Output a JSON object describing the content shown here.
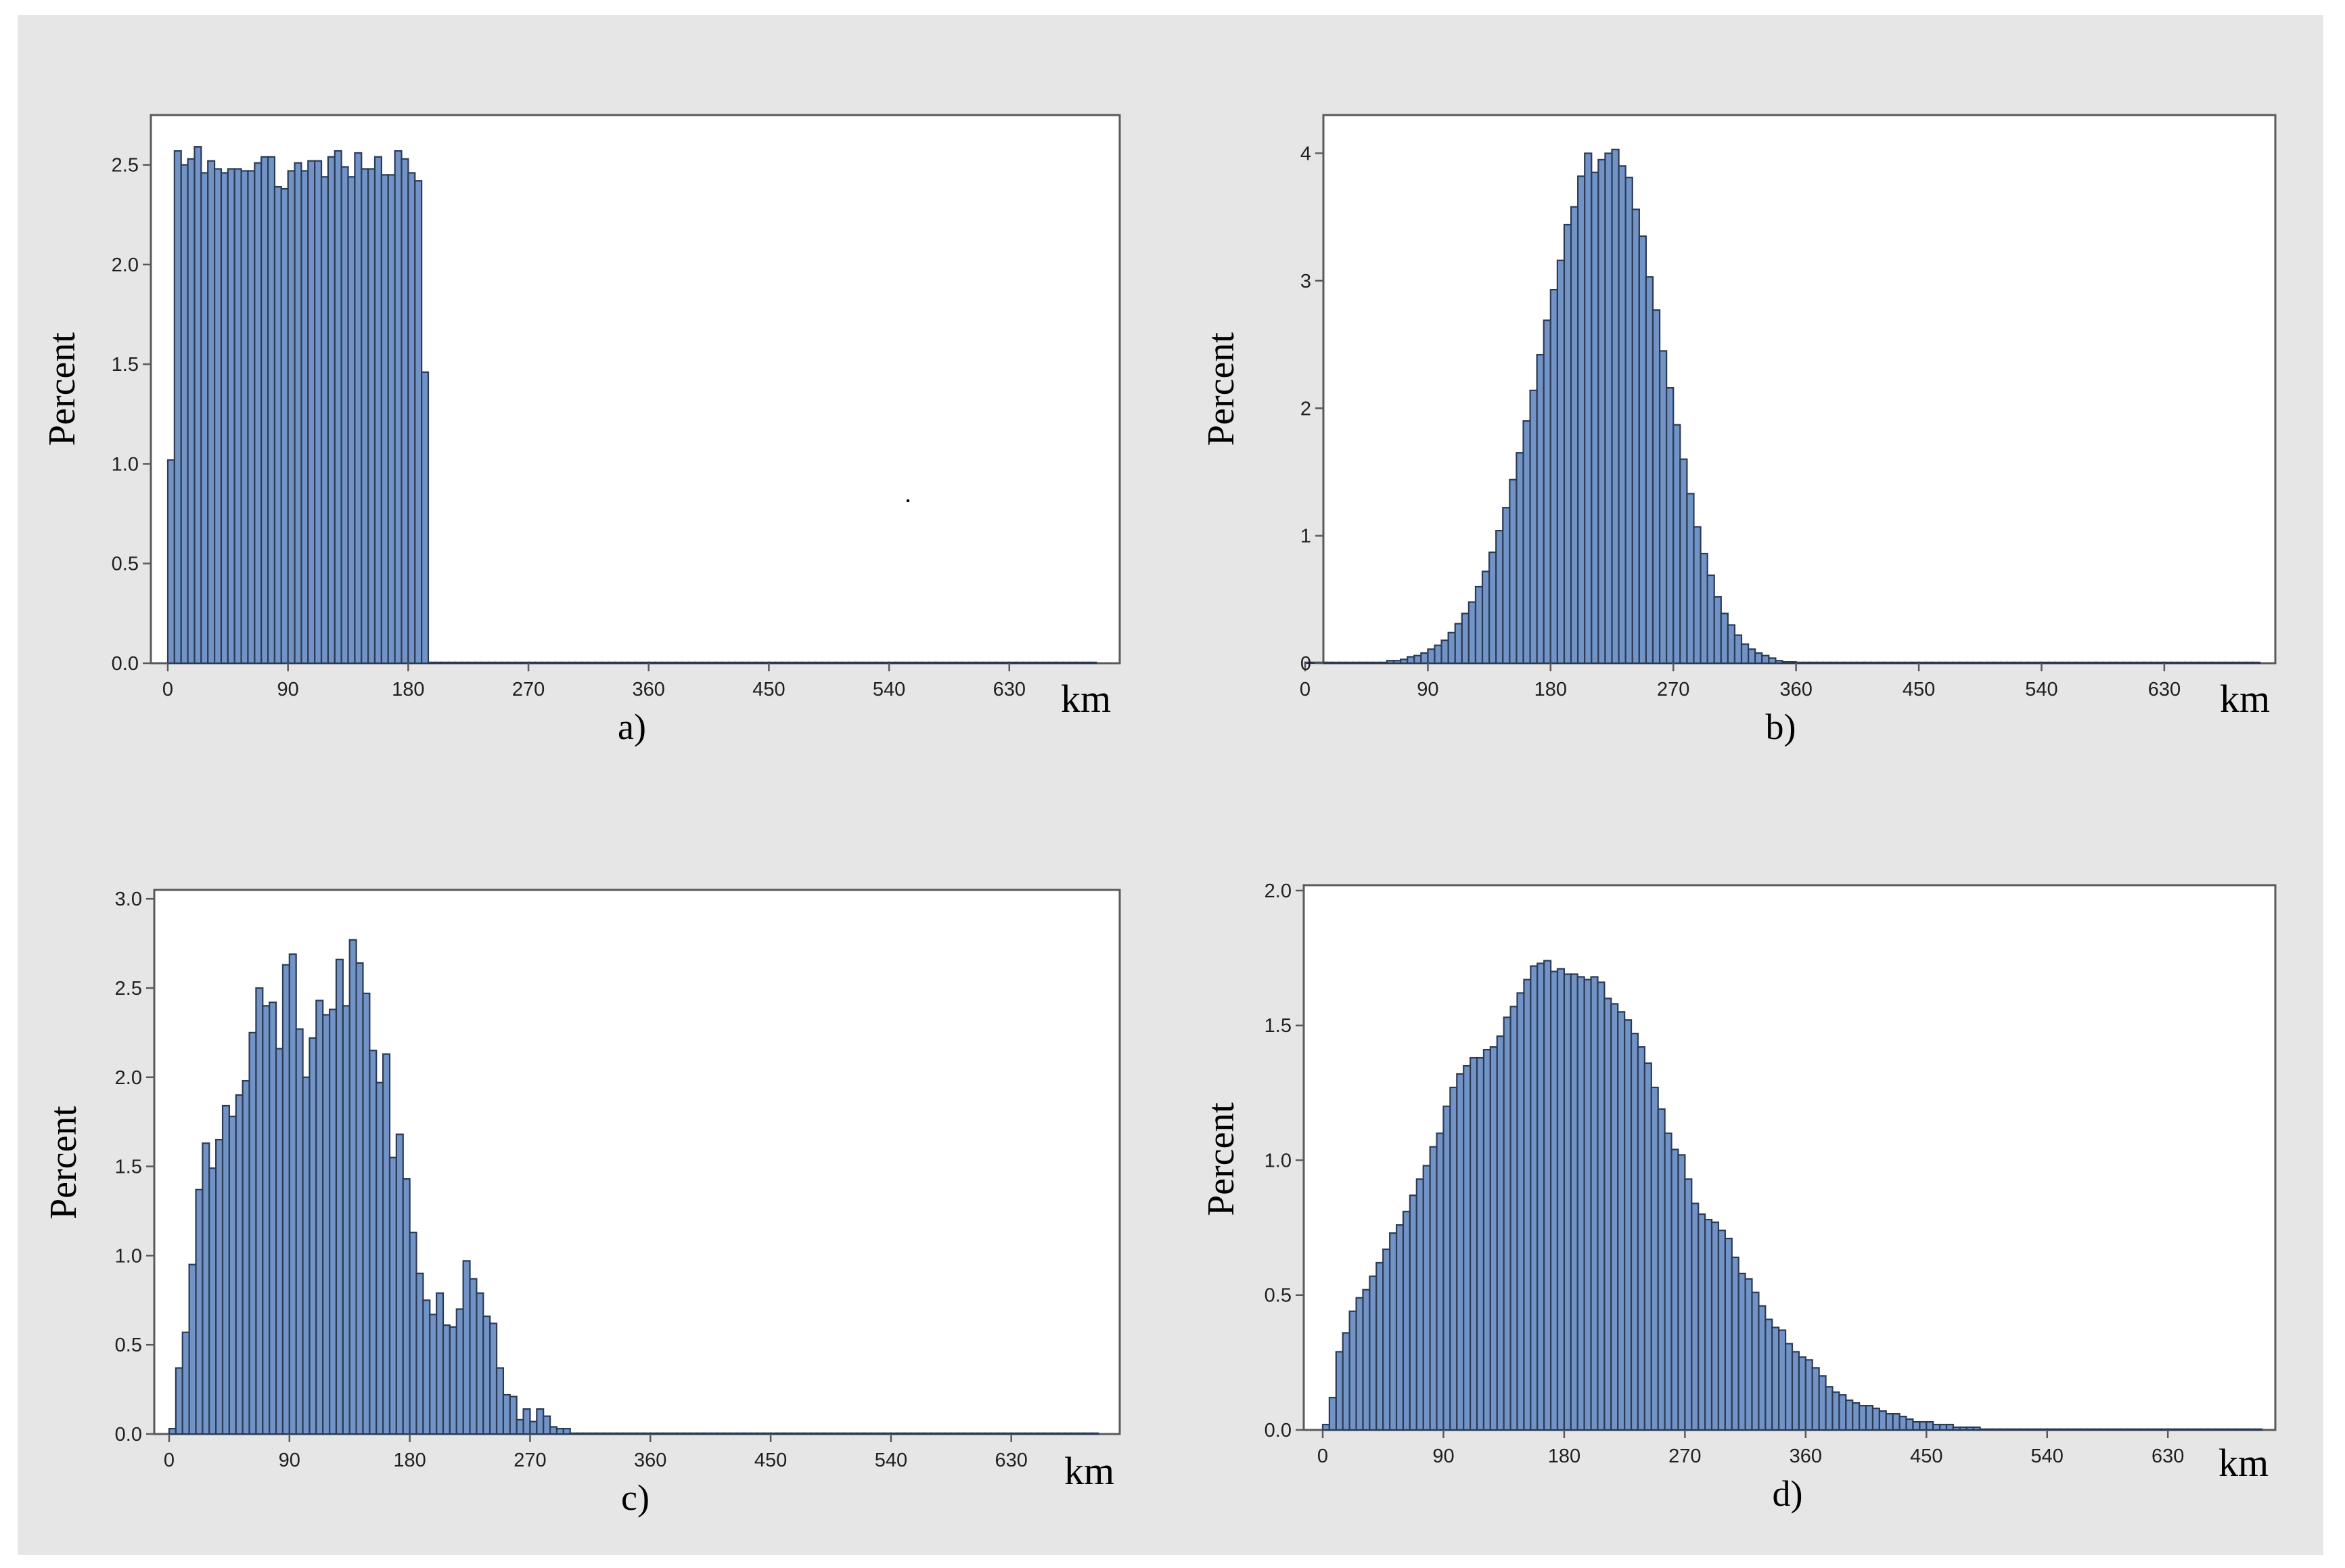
{
  "chart_data": [
    {
      "type": "bar",
      "panel": "a",
      "caption": "a)",
      "ylabel": "Percent",
      "xlabel": "km",
      "xlim": [
        0,
        700
      ],
      "ylim": [
        0,
        2.75
      ],
      "x_ticks": [
        "0",
        "90",
        "180",
        "270",
        "360",
        "450",
        "540",
        "630"
      ],
      "y_ticks": [
        "0.0",
        "0.5",
        "1.0",
        "1.5",
        "2.0",
        "2.5"
      ],
      "bin_start": 0,
      "bin_width": 5,
      "values": [
        1.02,
        2.57,
        2.5,
        2.53,
        2.59,
        2.46,
        2.52,
        2.48,
        2.46,
        2.48,
        2.48,
        2.47,
        2.47,
        2.51,
        2.54,
        2.54,
        2.39,
        2.38,
        2.47,
        2.51,
        2.47,
        2.52,
        2.52,
        2.44,
        2.54,
        2.57,
        2.49,
        2.44,
        2.56,
        2.48,
        2.48,
        2.54,
        2.45,
        2.45,
        2.57,
        2.53,
        2.46,
        2.42,
        1.46,
        0.0,
        0.0,
        0.0,
        0.0,
        0.0,
        0.0,
        0.0,
        0.0,
        0.0,
        0.0,
        0.0,
        0.0,
        0.0,
        0.0,
        0.0,
        0.0,
        0.0,
        0.0,
        0.0,
        0.0,
        0.0,
        0.0,
        0.0,
        0.0,
        0.0,
        0.0,
        0.0,
        0.0,
        0.0,
        0.0,
        0.0,
        0.0,
        0.0,
        0.0,
        0.0,
        0.0,
        0.0,
        0.0,
        0.0,
        0.0,
        0.0,
        0.0,
        0.0,
        0.0,
        0.0,
        0.0,
        0.0,
        0.0,
        0.0,
        0.0,
        0.0,
        0.0,
        0.0,
        0.0,
        0.0,
        0.0,
        0.0,
        0.0,
        0.0,
        0.0,
        0.0,
        0.0,
        0.0,
        0.0,
        0.0,
        0.0,
        0.0,
        0.0,
        0.0,
        0.0,
        0.0,
        0.0,
        0.0,
        0.0,
        0.0,
        0.0,
        0.0,
        0.0,
        0.0,
        0.0,
        0.0,
        0.0,
        0.0,
        0.0,
        0.0,
        0.0,
        0.0,
        0.0,
        0.0,
        0.0,
        0.0,
        0.0,
        0.0,
        0.0,
        0.0,
        0.0,
        0.0,
        0.0,
        0.0,
        0.0
      ],
      "grid": false,
      "legend": "none"
    },
    {
      "type": "bar",
      "panel": "b",
      "caption": "b)",
      "ylabel": "Percent",
      "xlabel": "km",
      "xlim": [
        0,
        700
      ],
      "ylim": [
        0,
        4.3
      ],
      "x_ticks": [
        "0",
        "90",
        "180",
        "270",
        "360",
        "450",
        "540",
        "630"
      ],
      "y_ticks": [
        "0",
        "1",
        "2",
        "3",
        "4"
      ],
      "bin_start": 0,
      "bin_width": 5,
      "values": [
        0.0,
        0.0,
        0.0,
        0.0,
        0.0,
        0.0,
        0.0,
        0.0,
        0.0,
        0.0,
        0.0,
        0.0,
        0.02,
        0.02,
        0.03,
        0.05,
        0.06,
        0.08,
        0.11,
        0.14,
        0.18,
        0.24,
        0.31,
        0.39,
        0.48,
        0.6,
        0.72,
        0.87,
        1.04,
        1.22,
        1.44,
        1.65,
        1.9,
        2.14,
        2.42,
        2.69,
        2.93,
        3.16,
        3.44,
        3.58,
        3.82,
        4.0,
        3.85,
        3.95,
        4.0,
        4.03,
        3.9,
        3.81,
        3.56,
        3.35,
        3.03,
        2.77,
        2.45,
        2.16,
        1.87,
        1.6,
        1.33,
        1.07,
        0.86,
        0.69,
        0.52,
        0.39,
        0.3,
        0.22,
        0.15,
        0.11,
        0.08,
        0.06,
        0.04,
        0.02,
        0.01,
        0.01,
        0.0,
        0.0,
        0.0,
        0.0,
        0.0,
        0.0,
        0.0,
        0.0,
        0.0,
        0.0,
        0.0,
        0.0,
        0.0,
        0.0,
        0.0,
        0.0,
        0.0,
        0.0,
        0.0,
        0.0,
        0.0,
        0.0,
        0.0,
        0.0,
        0.0,
        0.0,
        0.0,
        0.0,
        0.0,
        0.0,
        0.0,
        0.0,
        0.0,
        0.0,
        0.0,
        0.0,
        0.0,
        0.0,
        0.0,
        0.0,
        0.0,
        0.0,
        0.0,
        0.0,
        0.0,
        0.0,
        0.0,
        0.0,
        0.0,
        0.0,
        0.0,
        0.0,
        0.0,
        0.0,
        0.0,
        0.0,
        0.0,
        0.0,
        0.0,
        0.0,
        0.0,
        0.0,
        0.0,
        0.0,
        0.0,
        0.0,
        0.0,
        0.0
      ],
      "grid": false,
      "legend": "none"
    },
    {
      "type": "bar",
      "panel": "c",
      "caption": "c)",
      "ylabel": "Percent",
      "xlabel": "km",
      "xlim": [
        0,
        700
      ],
      "ylim": [
        0,
        3.05
      ],
      "x_ticks": [
        "0",
        "90",
        "180",
        "270",
        "360",
        "450",
        "540",
        "630"
      ],
      "y_ticks": [
        "0.0",
        "0.5",
        "1.0",
        "1.5",
        "2.0",
        "2.5",
        "3.0"
      ],
      "bin_start": 0,
      "bin_width": 5,
      "values": [
        0.03,
        0.37,
        0.57,
        0.95,
        1.37,
        1.63,
        1.49,
        1.65,
        1.84,
        1.78,
        1.9,
        1.98,
        2.25,
        2.5,
        2.4,
        2.42,
        2.16,
        2.63,
        2.69,
        2.27,
        2.0,
        2.22,
        2.43,
        2.35,
        2.38,
        2.66,
        2.4,
        2.77,
        2.64,
        2.47,
        2.15,
        1.97,
        2.13,
        1.55,
        1.68,
        1.43,
        1.13,
        0.9,
        0.75,
        0.67,
        0.79,
        0.61,
        0.6,
        0.7,
        0.97,
        0.87,
        0.79,
        0.66,
        0.62,
        0.37,
        0.22,
        0.21,
        0.08,
        0.14,
        0.07,
        0.14,
        0.1,
        0.04,
        0.03,
        0.03,
        0.0,
        0.0,
        0.0,
        0.0,
        0.0,
        0.0,
        0.0,
        0.0,
        0.0,
        0.0,
        0.0,
        0.0,
        0.0,
        0.0,
        0.0,
        0.0,
        0.0,
        0.0,
        0.0,
        0.0,
        0.0,
        0.0,
        0.0,
        0.0,
        0.0,
        0.0,
        0.0,
        0.0,
        0.0,
        0.0,
        0.0,
        0.0,
        0.0,
        0.0,
        0.0,
        0.0,
        0.0,
        0.0,
        0.0,
        0.0,
        0.0,
        0.0,
        0.0,
        0.0,
        0.0,
        0.0,
        0.0,
        0.0,
        0.0,
        0.0,
        0.0,
        0.0,
        0.0,
        0.0,
        0.0,
        0.0,
        0.0,
        0.0,
        0.0,
        0.0,
        0.0,
        0.0,
        0.0,
        0.0,
        0.0,
        0.0,
        0.0,
        0.0,
        0.0,
        0.0,
        0.0,
        0.0,
        0.0,
        0.0,
        0.0,
        0.0,
        0.0,
        0.0,
        0.0
      ],
      "grid": false,
      "legend": "none"
    },
    {
      "type": "bar",
      "panel": "d",
      "caption": "d)",
      "ylabel": "Percent",
      "xlabel": "km",
      "xlim": [
        0,
        700
      ],
      "ylim": [
        0,
        2.02
      ],
      "x_ticks": [
        "0",
        "90",
        "180",
        "270",
        "360",
        "450",
        "540",
        "630"
      ],
      "y_ticks": [
        "0.0",
        "0.5",
        "1.0",
        "1.5",
        "2.0"
      ],
      "bin_start": 0,
      "bin_width": 5,
      "values": [
        0.02,
        0.12,
        0.29,
        0.36,
        0.44,
        0.49,
        0.52,
        0.57,
        0.62,
        0.67,
        0.73,
        0.76,
        0.81,
        0.87,
        0.93,
        0.98,
        1.05,
        1.1,
        1.2,
        1.27,
        1.32,
        1.35,
        1.38,
        1.38,
        1.41,
        1.42,
        1.46,
        1.53,
        1.57,
        1.62,
        1.67,
        1.72,
        1.73,
        1.74,
        1.7,
        1.71,
        1.69,
        1.69,
        1.68,
        1.67,
        1.68,
        1.66,
        1.6,
        1.58,
        1.55,
        1.52,
        1.47,
        1.42,
        1.36,
        1.27,
        1.19,
        1.1,
        1.04,
        1.02,
        0.93,
        0.84,
        0.8,
        0.78,
        0.77,
        0.74,
        0.71,
        0.64,
        0.58,
        0.56,
        0.51,
        0.46,
        0.41,
        0.38,
        0.37,
        0.32,
        0.29,
        0.27,
        0.26,
        0.23,
        0.2,
        0.16,
        0.14,
        0.13,
        0.11,
        0.1,
        0.09,
        0.09,
        0.08,
        0.07,
        0.06,
        0.06,
        0.05,
        0.04,
        0.03,
        0.03,
        0.03,
        0.02,
        0.02,
        0.02,
        0.01,
        0.01,
        0.01,
        0.01,
        0.0,
        0.0,
        0.0,
        0.0,
        0.0,
        0.0,
        0.0,
        0.0,
        0.0,
        0.0,
        0.0,
        0.0,
        0.0,
        0.0,
        0.0,
        0.0,
        0.0,
        0.0,
        0.0,
        0.0,
        0.0,
        0.0,
        0.0,
        0.0,
        0.0,
        0.0,
        0.0,
        0.0,
        0.0,
        0.0,
        0.0,
        0.0,
        0.0,
        0.0,
        0.0,
        0.0,
        0.0,
        0.0,
        0.0,
        0.0,
        0.0,
        0.0
      ],
      "grid": false,
      "legend": "none"
    }
  ]
}
